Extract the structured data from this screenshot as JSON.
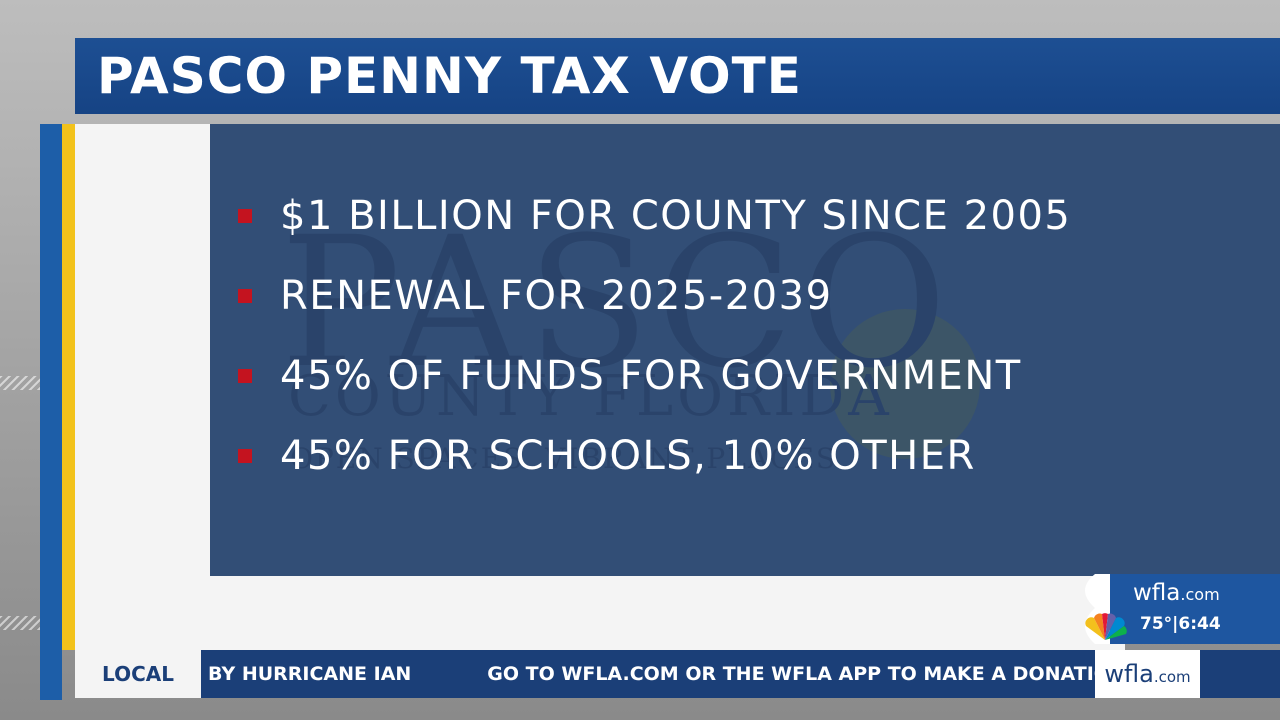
{
  "title": "PASCO PENNY TAX VOTE",
  "bullets": [
    "$1 BILLION FOR COUNTY SINCE 2005",
    "RENEWAL FOR 2025-2039",
    "45% OF FUNDS FOR GOVERNMENT",
    "45% FOR SCHOOLS, 10% OTHER"
  ],
  "watermark": {
    "line1": "PASCO",
    "line2": "COUNTY FLORIDA",
    "line3": "OPEN SPACES. VIBRANT PLACES."
  },
  "badge": {
    "site_name": "wfla",
    "site_suffix": ".com",
    "weather": "75°|6:44",
    "icon": "nbc-peacock-icon"
  },
  "ticker": {
    "label": "LOCAL",
    "text_1": "BY HURRICANE IAN",
    "text_2": "GO TO WFLA.COM OR THE WFLA APP TO MAKE A DONATION",
    "logo_name": "wfla",
    "logo_suffix": ".com"
  },
  "colors": {
    "title_bar": "#1d4f93",
    "content_box": "#324e76",
    "bullet_mark": "#c4131f",
    "gold_accent": "#f2c21b",
    "ticker": "#1b3f78"
  }
}
